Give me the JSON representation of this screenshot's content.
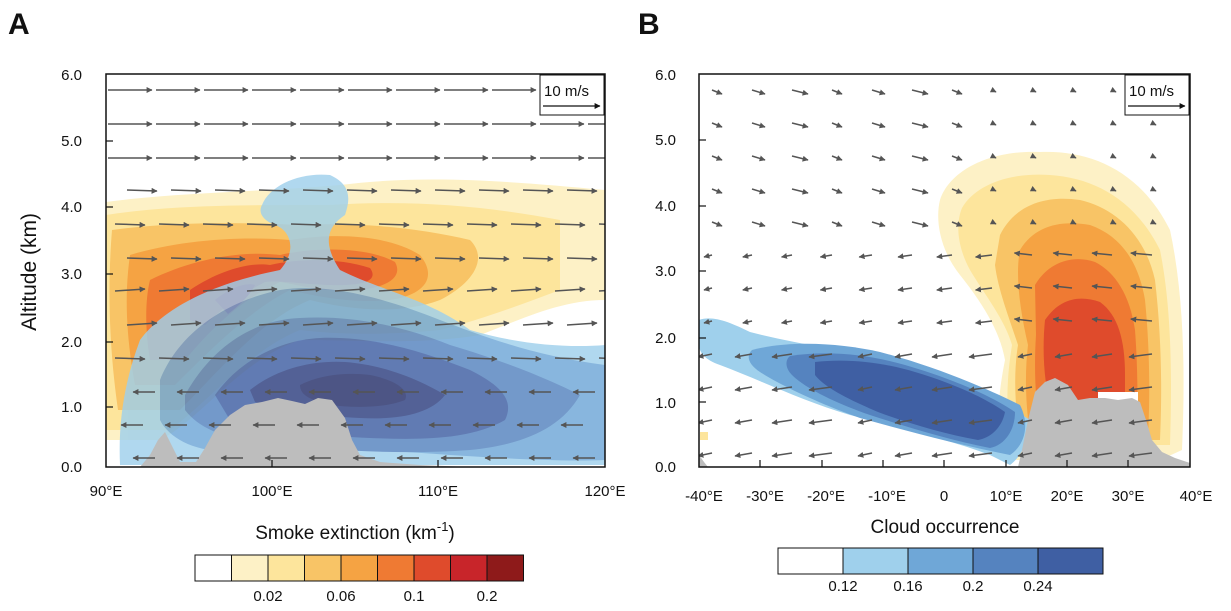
{
  "panels": [
    {
      "letter": "A",
      "ylabel": "Altitude (km)",
      "xlabel_main": "Smoke extinction (km",
      "xlabel_sup": "-1",
      "xlabel_end": ")",
      "yticks": [
        "0.0",
        "1.0",
        "2.0",
        "3.0",
        "4.0",
        "5.0",
        "6.0"
      ],
      "xticks": [
        "90°E",
        "100°E",
        "110°E",
        "120°E"
      ],
      "reference_vector": "10 m/s",
      "colorbar_labels": [
        "0.02",
        "0.06",
        "0.1",
        "0.2"
      ],
      "colorbar_colors": [
        "#ffffff",
        "#fdf1c6",
        "#fde59c",
        "#f8c466",
        "#f5a343",
        "#ef7a33",
        "#df4b2c",
        "#c8252a",
        "#8e1a1a"
      ]
    },
    {
      "letter": "B",
      "ylabel": "",
      "xlabel": "Cloud occurrence",
      "yticks": [
        "0.0",
        "1.0",
        "2.0",
        "3.0",
        "4.0",
        "5.0",
        "6.0"
      ],
      "xticks": [
        "-40°E",
        "-30°E",
        "-20°E",
        "-10°E",
        "0",
        "10°E",
        "20°E",
        "30°E",
        "40°E"
      ],
      "reference_vector": "10 m/s",
      "colorbar_labels": [
        "0.12",
        "0.16",
        "0.2",
        "0.24"
      ],
      "colorbar_colors": [
        "#ffffff",
        "#9fd0ec",
        "#6fa7d7",
        "#5583bf",
        "#3f5fa3"
      ]
    }
  ],
  "chart_data": [
    {
      "type": "heatmap",
      "title": "A",
      "ylabel": "Altitude (km)",
      "xlabel": "Smoke extinction (km-1)",
      "xlim": [
        90,
        120
      ],
      "ylim": [
        0,
        6
      ],
      "xtick_values": [
        90,
        100,
        110,
        120
      ],
      "ytick_values": [
        0,
        1,
        2,
        3,
        4,
        5,
        6
      ],
      "colorbar_levels": [
        0.02,
        0.06,
        0.1,
        0.2
      ],
      "reference_vector_speed_ms": 10
    },
    {
      "type": "heatmap",
      "title": "B",
      "ylabel": "",
      "xlabel": "Cloud occurrence",
      "xlim": [
        -40,
        40
      ],
      "ylim": [
        0,
        6
      ],
      "xtick_values": [
        -40,
        -30,
        -20,
        -10,
        0,
        10,
        20,
        30,
        40
      ],
      "ytick_values": [
        0,
        1,
        2,
        3,
        4,
        5,
        6
      ],
      "colorbar_levels": [
        0.12,
        0.16,
        0.2,
        0.24
      ],
      "reference_vector_speed_ms": 10
    }
  ]
}
